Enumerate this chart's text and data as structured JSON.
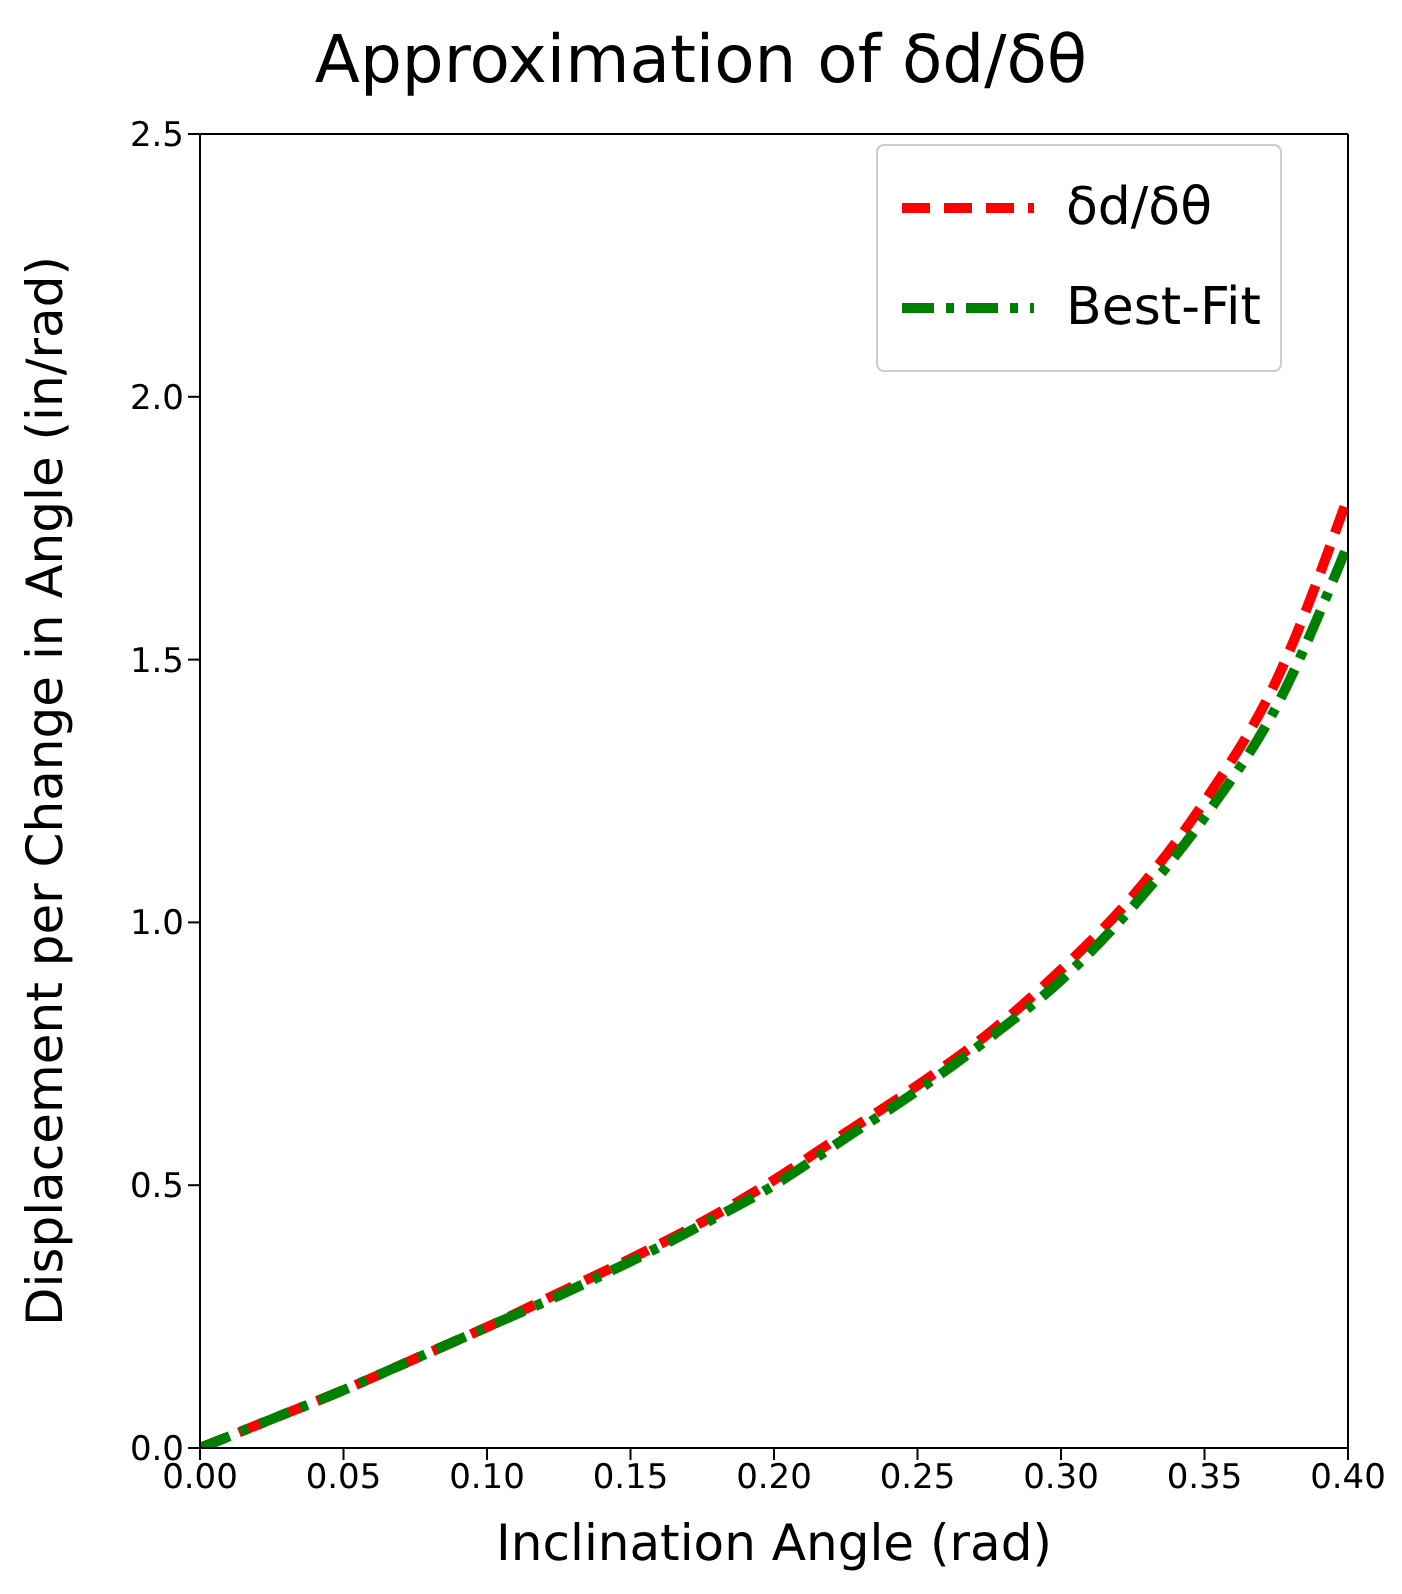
{
  "chart_data": {
    "type": "line",
    "title": "Approximation of δd/δθ",
    "xlabel": "Inclination Angle (rad)",
    "ylabel": "Displacement per Change in Angle (in/rad)",
    "x": [
      0,
      0.025,
      0.05,
      0.075,
      0.1,
      0.125,
      0.15,
      0.175,
      0.2,
      0.225,
      0.25,
      0.275,
      0.3,
      0.325,
      0.35,
      0.375,
      0.4
    ],
    "series": [
      {
        "name": "δd/δθ",
        "color": "#ff0000",
        "line_style": "dashed",
        "values": [
          0,
          0.055,
          0.11,
          0.17,
          0.23,
          0.295,
          0.36,
          0.43,
          0.51,
          0.6,
          0.69,
          0.79,
          0.91,
          1.05,
          1.23,
          1.46,
          1.81
        ]
      },
      {
        "name": "Best-Fit",
        "color": "#008000",
        "line_style": "dashdot",
        "values": [
          0,
          0.055,
          0.11,
          0.17,
          0.23,
          0.29,
          0.355,
          0.425,
          0.5,
          0.59,
          0.68,
          0.78,
          0.89,
          1.03,
          1.2,
          1.41,
          1.72
        ]
      }
    ],
    "xlim": [
      0,
      0.4
    ],
    "xticks": [
      {
        "value": 0,
        "label": "0.00"
      },
      0.05,
      {
        "value": 0.1,
        "label": "0.10"
      },
      0.15,
      {
        "value": 0.2,
        "label": "0.20"
      },
      0.25,
      {
        "value": 0.3,
        "label": "0.30"
      },
      0.35,
      {
        "value": 0.4,
        "label": "0.40"
      }
    ],
    "ylim": [
      0,
      2.5
    ],
    "yticks": [
      {
        "value": 0,
        "label": "0.0"
      },
      0.5,
      {
        "value": 1,
        "label": "1.0"
      },
      1.5,
      {
        "value": 2,
        "label": "2.0"
      },
      2.5
    ],
    "grid": false,
    "legend": "top right",
    "marker": "none"
  }
}
